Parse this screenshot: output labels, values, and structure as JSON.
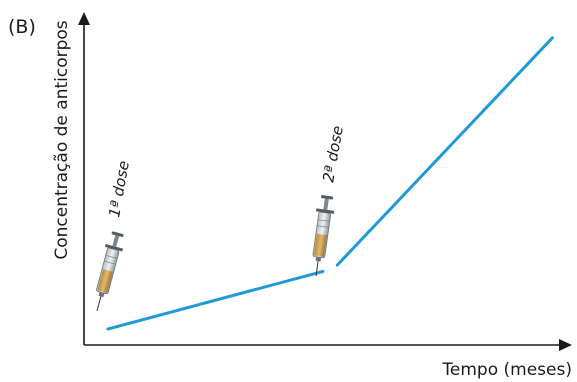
{
  "chart_data": {
    "type": "line",
    "panel_label": "(B)",
    "title": "",
    "xlabel": "Tempo (meses)",
    "ylabel": "Concentração de anticorpos",
    "grid": false,
    "legend": "none",
    "series": [
      {
        "segments": [
          [
            [
              0.05,
              0.05
            ],
            [
              0.5,
              0.23
            ]
          ],
          [
            [
              0.53,
              0.25
            ],
            [
              0.98,
              0.96
            ]
          ]
        ]
      }
    ],
    "annotations": [
      {
        "text": "1ª dose",
        "icon": "syringe-icon"
      },
      {
        "text": "2ª dose",
        "icon": "syringe-icon"
      }
    ],
    "colors": {
      "line": "#1f9ad6",
      "axis": "#1a1a1a"
    }
  }
}
